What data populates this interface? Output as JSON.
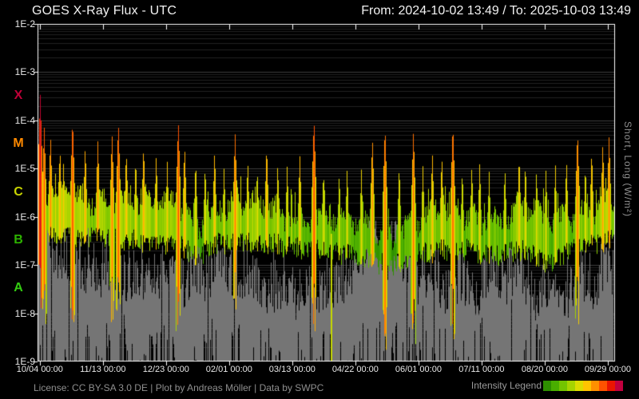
{
  "header": {
    "title": "GOES X-Ray Flux - UTC",
    "range": "From: 2024-10-02 13:49  /  To: 2025-10-03 13:49"
  },
  "footer": {
    "license": "License: CC BY-SA 3.0 DE | Plot by Andreas Möller | Data by SWPC",
    "legend_label": "Intensity Legend"
  },
  "colors": {
    "background": "#000000",
    "text": "#f2f2f2",
    "muted": "#8f8f8f",
    "frame": "#ffffff",
    "grid_major": "#3e3e3e",
    "grid_minor": "#222222",
    "short_channel": "#757575",
    "gap_line": "#c6d800"
  },
  "chart_data": {
    "type": "area",
    "title": "GOES X-Ray Flux - UTC",
    "time_range": {
      "from": "2024-10-02 13:49",
      "to": "2025-10-03 13:49"
    },
    "x_ticks": {
      "labels": [
        "10/04 00:00",
        "11/13 00:00",
        "12/23 00:00",
        "02/01 00:00",
        "03/13 00:00",
        "04/22 00:00",
        "06/01 00:00",
        "07/11 00:00",
        "08/20 00:00",
        "09/29 00:00"
      ],
      "first_day": 1.42,
      "interval_days": 40,
      "span_days": 366
    },
    "y_axis": {
      "labels": [
        "1E-2",
        "1E-3",
        "1E-4",
        "1E-5",
        "1E-6",
        "1E-7",
        "1E-8",
        "1E-9"
      ],
      "log_top": -2,
      "log_bottom": -9,
      "unit": "W/m²",
      "right_label": "Short, Long (W/m²)"
    },
    "flare_classes": [
      {
        "label": "X",
        "log_center": -3.5,
        "color": "#c00038"
      },
      {
        "label": "M",
        "log_center": -4.5,
        "color": "#ff8a00"
      },
      {
        "label": "C",
        "log_center": -5.5,
        "color": "#c8d400"
      },
      {
        "label": "B",
        "log_center": -6.5,
        "color": "#2db200"
      },
      {
        "label": "A",
        "log_center": -7.5,
        "color": "#33cc11"
      }
    ],
    "intensity_scale": {
      "colors": [
        "#2e8f00",
        "#49ae00",
        "#73c400",
        "#a6d400",
        "#dcdc00",
        "#ffc400",
        "#ff9000",
        "#ff5200",
        "#ea1500",
        "#c2003e"
      ],
      "log_min": -6.6,
      "log_max": -3.4
    },
    "series": {
      "long": {
        "name": "Long",
        "sample_interval_days": 4,
        "baseline_log10": [
          -5.6,
          -5.65,
          -5.6,
          -5.7,
          -5.65,
          -5.7,
          -5.7,
          -5.75,
          -5.7,
          -5.65,
          -5.7,
          -5.75,
          -5.7,
          -5.75,
          -5.8,
          -5.75,
          -5.8,
          -5.85,
          -5.8,
          -5.9,
          -5.85,
          -5.8,
          -5.85,
          -5.9,
          -6.0,
          -6.1,
          -6.05,
          -5.95,
          -5.85,
          -5.8,
          -5.85,
          -5.8,
          -5.75,
          -5.8,
          -5.85,
          -5.8,
          -5.85,
          -5.8,
          -5.85,
          -5.9,
          -5.85,
          -5.9,
          -5.95,
          -5.9,
          -5.95,
          -6.0,
          -5.95,
          -6.0,
          -6.05,
          -6.0,
          -6.1,
          -6.15,
          -6.1,
          -6.2,
          -6.25,
          -6.2,
          -6.3,
          -6.25,
          -6.15,
          -6.1,
          -6.05,
          -6.0,
          -6.05,
          -6.0,
          -5.95,
          -6.0,
          -6.05,
          -6.0,
          -5.95,
          -6.0,
          -6.05,
          -6.0,
          -6.05,
          -6.1,
          -6.05,
          -6.0,
          -6.0,
          -5.95,
          -6.0,
          -6.1,
          -6.2,
          -6.25,
          -6.2,
          -6.1,
          -6.0,
          -5.95,
          -5.9,
          -5.85,
          -5.8,
          -5.85,
          -5.8,
          -5.75,
          -5.7
        ]
      },
      "short": {
        "name": "Short",
        "color": "#757575",
        "sample_interval_days": 4,
        "top_log10": [
          -6.6,
          -6.7,
          -6.6,
          -6.8,
          -6.7,
          -6.9,
          -6.8,
          -7.0,
          -6.9,
          -6.8,
          -7.0,
          -7.0,
          -6.9,
          -7.1,
          -7.0,
          -7.2,
          -7.1,
          -7.3,
          -7.2,
          -7.4,
          -7.3,
          -7.2,
          -7.3,
          -7.5,
          -7.6,
          -7.4,
          -7.3,
          -7.2,
          -7.0,
          -7.1,
          -7.2,
          -7.0,
          -6.9,
          -7.1,
          -7.2,
          -7.1,
          -7.2,
          -7.1,
          -7.3,
          -7.4,
          -7.2,
          -7.3,
          -7.5,
          -7.4,
          -7.6,
          -7.5,
          -7.4,
          -7.6,
          -7.7,
          -7.5,
          -7.3,
          -7.0,
          -6.8,
          -6.7,
          -6.9,
          -6.8,
          -6.6,
          -6.7,
          -6.9,
          -6.8,
          -7.0,
          -6.9,
          -7.1,
          -7.0,
          -7.2,
          -7.1,
          -7.3,
          -7.2,
          -7.4,
          -7.3,
          -7.5,
          -7.4,
          -7.2,
          -7.3,
          -7.5,
          -7.4,
          -7.3,
          -7.5,
          -7.6,
          -7.8,
          -7.7,
          -7.8,
          -7.6,
          -7.5,
          -7.4,
          -7.2,
          -7.0,
          -6.9,
          -7.1,
          -7.0,
          -6.8,
          -6.9,
          -6.8
        ]
      }
    },
    "flares": [
      [
        1.5,
        -3.45
      ],
      [
        4,
        -4.1
      ],
      [
        8,
        -4.3
      ],
      [
        14,
        -4.55
      ],
      [
        22,
        -3.95
      ],
      [
        30,
        -4.5
      ],
      [
        38,
        -4.4
      ],
      [
        47,
        -4.25
      ],
      [
        51,
        -4.02
      ],
      [
        56,
        -4.6
      ],
      [
        62,
        -4.75
      ],
      [
        67,
        -4.5
      ],
      [
        75,
        -4.7
      ],
      [
        82,
        -4.85
      ],
      [
        89,
        -4.0
      ],
      [
        93,
        -4.5
      ],
      [
        100,
        -4.8
      ],
      [
        106,
        -4.9
      ],
      [
        112,
        -4.6
      ],
      [
        118,
        -4.95
      ],
      [
        125,
        -4.25
      ],
      [
        133,
        -4.8
      ],
      [
        139,
        -4.95
      ],
      [
        145,
        -4.5
      ],
      [
        152,
        -4.85
      ],
      [
        158,
        -4.9
      ],
      [
        166,
        -4.7
      ],
      [
        175,
        -3.95
      ],
      [
        181,
        -5.0
      ],
      [
        191,
        -5.05
      ],
      [
        196,
        -4.95
      ],
      [
        205,
        -5.0
      ],
      [
        212,
        -4.35
      ],
      [
        220,
        -4.1
      ],
      [
        229,
        -4.9
      ],
      [
        238,
        -4.2
      ],
      [
        244,
        -4.95
      ],
      [
        250,
        -4.65
      ],
      [
        256,
        -4.7
      ],
      [
        263,
        -4.05
      ],
      [
        269,
        -5.0
      ],
      [
        275,
        -4.9
      ],
      [
        280,
        -4.85
      ],
      [
        286,
        -5.05
      ],
      [
        296,
        -4.95
      ],
      [
        305,
        -4.7
      ],
      [
        309,
        -4.85
      ],
      [
        316,
        -5.0
      ],
      [
        322,
        -5.0
      ],
      [
        328,
        -4.9
      ],
      [
        335,
        -4.8
      ],
      [
        342,
        -4.2
      ],
      [
        347,
        -4.9
      ],
      [
        351,
        -4.6
      ],
      [
        358,
        -4.45
      ],
      [
        362,
        -4.3
      ]
    ],
    "data_gap_day": 186,
    "render": {
      "seed": 7,
      "noise_long": 0.42,
      "noise_short": 1.15
    }
  }
}
